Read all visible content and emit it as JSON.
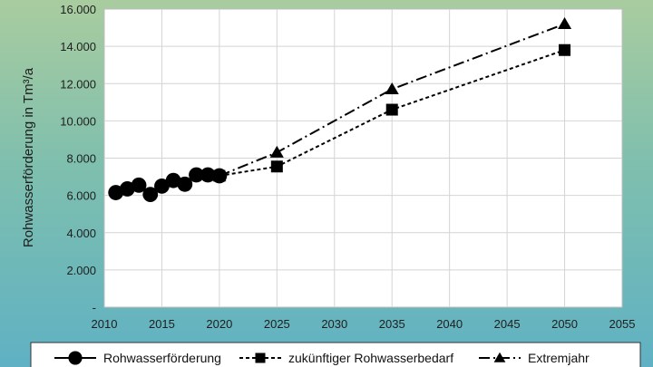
{
  "chart_data": {
    "type": "line",
    "ylabel": "Rohwasserförderung in Tm³/a",
    "xlim": [
      2010,
      2055
    ],
    "ylim": [
      0,
      16000
    ],
    "x_ticks": [
      "2010",
      "2015",
      "2020",
      "2025",
      "2030",
      "2035",
      "2040",
      "2045",
      "2050",
      "2055"
    ],
    "y_ticks": [
      "-",
      "2.000",
      "4.000",
      "6.000",
      "8.000",
      "10.000",
      "12.000",
      "14.000",
      "16.000"
    ],
    "grid": true,
    "legend_position": "bottom",
    "series": [
      {
        "name": "Rohwasserförderung",
        "marker": "circle",
        "line": "solid",
        "points": [
          {
            "x": 2011,
            "y": 6150
          },
          {
            "x": 2012,
            "y": 6350
          },
          {
            "x": 2013,
            "y": 6550
          },
          {
            "x": 2014,
            "y": 6050
          },
          {
            "x": 2015,
            "y": 6500
          },
          {
            "x": 2016,
            "y": 6800
          },
          {
            "x": 2017,
            "y": 6600
          },
          {
            "x": 2018,
            "y": 7100
          },
          {
            "x": 2019,
            "y": 7100
          },
          {
            "x": 2020,
            "y": 7050
          }
        ]
      },
      {
        "name": "zukünftiger Rohwasserbedarf",
        "marker": "square",
        "line": "dashed",
        "points": [
          {
            "x": 2020,
            "y": 7050
          },
          {
            "x": 2025,
            "y": 7550
          },
          {
            "x": 2035,
            "y": 10600
          },
          {
            "x": 2050,
            "y": 13800
          }
        ]
      },
      {
        "name": "Extremjahr",
        "marker": "triangle",
        "line": "dashdot",
        "points": [
          {
            "x": 2020,
            "y": 7050
          },
          {
            "x": 2025,
            "y": 8300
          },
          {
            "x": 2035,
            "y": 11700
          },
          {
            "x": 2050,
            "y": 15200
          }
        ]
      }
    ]
  }
}
